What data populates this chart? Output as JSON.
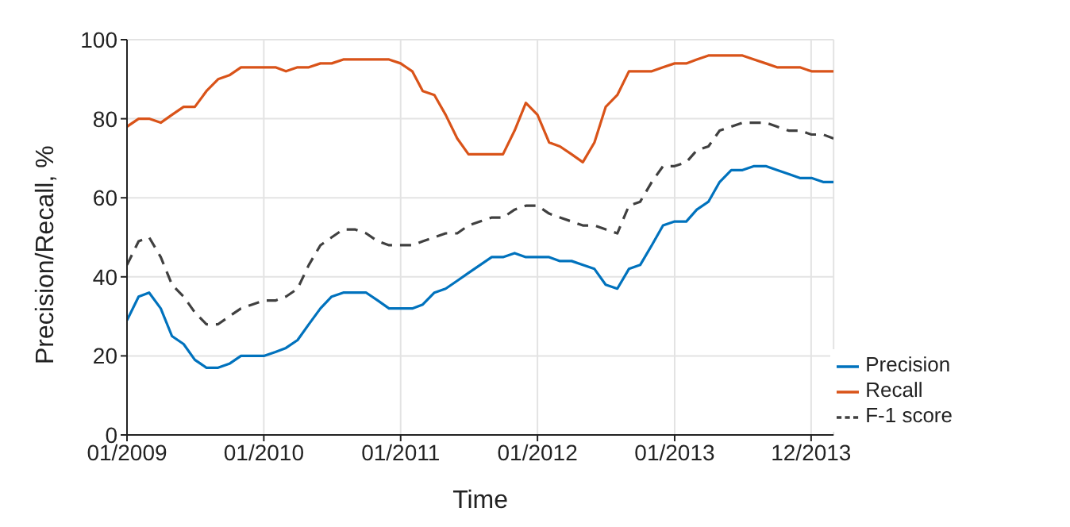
{
  "chart_data": {
    "type": "line",
    "xlabel": "Time",
    "ylabel": "Precision/Recall, %",
    "x": [
      "2009-01",
      "2009-02",
      "2009-03",
      "2009-04",
      "2009-05",
      "2009-06",
      "2009-07",
      "2009-08",
      "2009-09",
      "2009-10",
      "2009-11",
      "2009-12",
      "2010-01",
      "2010-02",
      "2010-03",
      "2010-04",
      "2010-05",
      "2010-06",
      "2010-07",
      "2010-08",
      "2010-09",
      "2010-10",
      "2010-11",
      "2010-12",
      "2011-01",
      "2011-02",
      "2011-03",
      "2011-04",
      "2011-05",
      "2011-06",
      "2011-07",
      "2011-08",
      "2011-09",
      "2011-10",
      "2011-11",
      "2011-12",
      "2012-01",
      "2012-02",
      "2012-03",
      "2012-04",
      "2012-05",
      "2012-06",
      "2012-07",
      "2012-08",
      "2012-09",
      "2012-10",
      "2012-11",
      "2012-12",
      "2013-01",
      "2013-02",
      "2013-03",
      "2013-04",
      "2013-05",
      "2013-06",
      "2013-07",
      "2013-08",
      "2013-09",
      "2013-10",
      "2013-11",
      "2013-12",
      "2014-01",
      "2014-02",
      "2014-03"
    ],
    "series": [
      {
        "name": "Precision",
        "color": "#0072bd",
        "line_style": "solid",
        "values": [
          29,
          35,
          36,
          32,
          25,
          23,
          19,
          17,
          17,
          18,
          20,
          20,
          20,
          21,
          22,
          24,
          28,
          32,
          35,
          36,
          36,
          36,
          34,
          32,
          32,
          32,
          33,
          36,
          37,
          39,
          41,
          43,
          45,
          45,
          46,
          45,
          45,
          45,
          44,
          44,
          43,
          42,
          38,
          37,
          42,
          43,
          48,
          53,
          54,
          54,
          57,
          59,
          64,
          67,
          67,
          68,
          68,
          67,
          66,
          65,
          65,
          64,
          64
        ]
      },
      {
        "name": "Recall",
        "color": "#d95319",
        "line_style": "solid",
        "values": [
          78,
          80,
          80,
          79,
          81,
          83,
          83,
          87,
          90,
          91,
          93,
          93,
          93,
          93,
          92,
          93,
          93,
          94,
          94,
          95,
          95,
          95,
          95,
          95,
          94,
          92,
          87,
          86,
          81,
          75,
          71,
          71,
          71,
          71,
          77,
          84,
          81,
          74,
          73,
          71,
          69,
          74,
          83,
          86,
          92,
          92,
          92,
          93,
          94,
          94,
          95,
          96,
          96,
          96,
          96,
          95,
          94,
          93,
          93,
          93,
          92,
          92,
          92
        ]
      },
      {
        "name": "F-1 score",
        "color": "#404040",
        "line_style": "dashed",
        "values": [
          43,
          49,
          50,
          45,
          38,
          35,
          31,
          28,
          28,
          30,
          32,
          33,
          34,
          34,
          35,
          37,
          43,
          48,
          50,
          52,
          52,
          51,
          49,
          48,
          48,
          48,
          49,
          50,
          51,
          51,
          53,
          54,
          55,
          55,
          57,
          58,
          58,
          56,
          55,
          54,
          53,
          53,
          52,
          51,
          58,
          59,
          64,
          68,
          68,
          69,
          72,
          73,
          77,
          78,
          79,
          79,
          79,
          78,
          77,
          77,
          76,
          76,
          75
        ]
      }
    ],
    "xlim": [
      "2009-01",
      "2014-03"
    ],
    "xticks": [
      {
        "value": "2009-01",
        "label": "01/2009"
      },
      {
        "value": "2010-01",
        "label": "01/2010"
      },
      {
        "value": "2011-01",
        "label": "01/2011"
      },
      {
        "value": "2012-01",
        "label": "01/2012"
      },
      {
        "value": "2013-01",
        "label": "01/2013"
      },
      {
        "value": "2013-12-31",
        "label": "12/2013"
      }
    ],
    "ylim": [
      0,
      100
    ],
    "yticks": [
      0,
      20,
      40,
      60,
      80,
      100
    ],
    "grid": true,
    "legend": "bottom right",
    "marker": "none"
  }
}
